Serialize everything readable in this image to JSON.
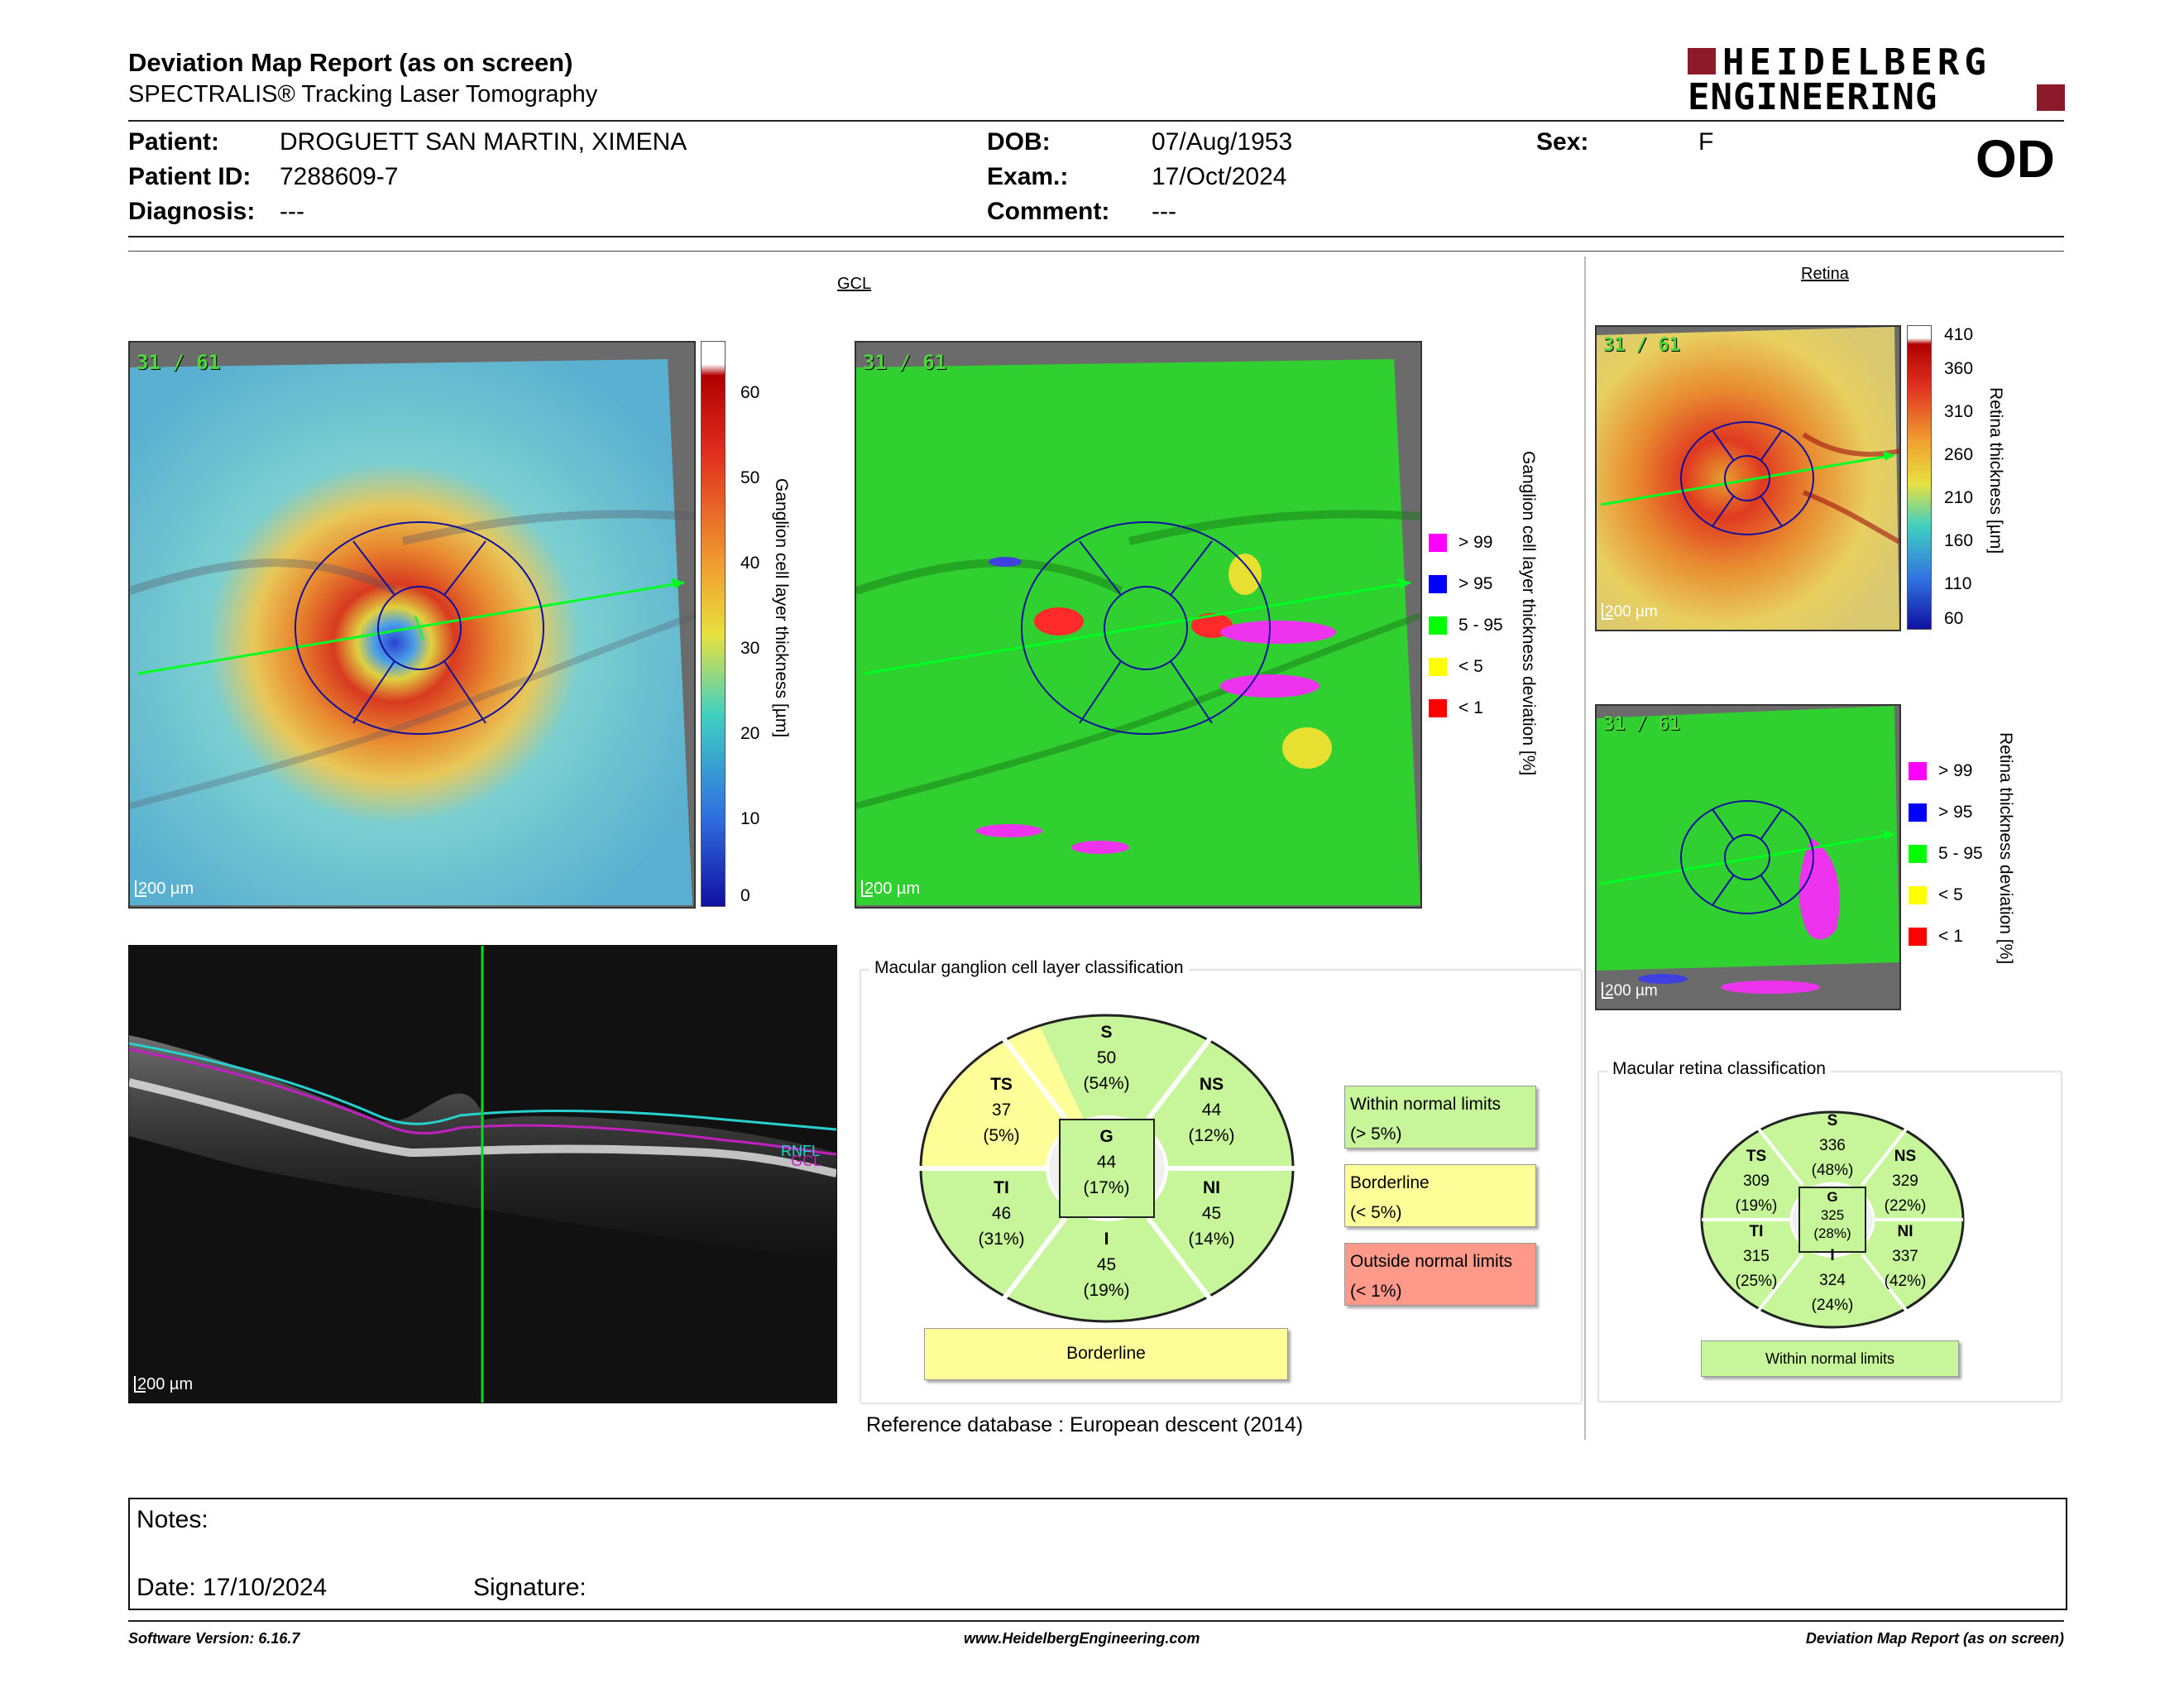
{
  "header": {
    "title": "Deviation Map Report (as on screen)",
    "subtitle": "SPECTRALIS® Tracking Laser Tomography",
    "logo_line1": "HEIDELBERG",
    "logo_line2": "ENGINEERING",
    "logo_color": "#8b1a2b"
  },
  "patient": {
    "patient_label": "Patient:",
    "patient_value": "DROGUETT SAN MARTIN, XIMENA",
    "id_label": "Patient ID:",
    "id_value": "7288609-7",
    "diagnosis_label": "Diagnosis:",
    "diagnosis_value": "---",
    "dob_label": "DOB:",
    "dob_value": "07/Aug/1953",
    "exam_label": "Exam.:",
    "exam_value": "17/Oct/2024",
    "comment_label": "Comment:",
    "comment_value": "---",
    "sex_label": "Sex:",
    "sex_value": "F",
    "eye": "OD"
  },
  "gcl": {
    "section_title": "GCL",
    "scan_index": "31 / 61",
    "scale_label": "200 µm",
    "thickness_ticks": [
      "60",
      "50",
      "40",
      "30",
      "20",
      "10",
      "0"
    ],
    "thickness_axis": "Ganglion cell layer thickness [µm]",
    "deviation_axis": "Ganglion cell layer thickness deviation [%]",
    "legend": [
      {
        "label": "> 99",
        "color": "#ff00ff"
      },
      {
        "label": "> 95",
        "color": "#0000ff"
      },
      {
        "label": "5 - 95",
        "color": "#00ff00"
      },
      {
        "label": "< 5",
        "color": "#ffff00"
      },
      {
        "label": "< 1",
        "color": "#ff0000"
      }
    ]
  },
  "retina": {
    "section_title": "Retina",
    "scan_index": "31 / 61",
    "scale_label": "200 µm",
    "thickness_ticks": [
      "410",
      "360",
      "310",
      "260",
      "210",
      "160",
      "110",
      "60"
    ],
    "thickness_axis": "Retina thickness [µm]",
    "deviation_axis": "Retina thickness deviation [%]",
    "legend": [
      {
        "label": "> 99",
        "color": "#ff00ff"
      },
      {
        "label": "> 95",
        "color": "#0000ff"
      },
      {
        "label": "5 - 95",
        "color": "#00ff00"
      },
      {
        "label": "< 5",
        "color": "#ffff00"
      },
      {
        "label": "< 1",
        "color": "#ff0000"
      }
    ]
  },
  "bscan": {
    "scale_label": "200 µm",
    "layer_label_1": "RNFL",
    "layer_label_2": "GCL"
  },
  "gcl_classification": {
    "title": "Macular ganglion cell layer classification",
    "sectors": {
      "S": {
        "name": "S",
        "value": "50",
        "pct": "(54%)"
      },
      "TS": {
        "name": "TS",
        "value": "37",
        "pct": "(5%)"
      },
      "NS": {
        "name": "NS",
        "value": "44",
        "pct": "(12%)"
      },
      "TI": {
        "name": "TI",
        "value": "46",
        "pct": "(31%)"
      },
      "NI": {
        "name": "NI",
        "value": "45",
        "pct": "(14%)"
      },
      "I": {
        "name": "I",
        "value": "45",
        "pct": "(19%)"
      },
      "G": {
        "name": "G",
        "value": "44",
        "pct": "(17%)"
      }
    },
    "result": "Borderline",
    "legend": [
      {
        "line1": "Within normal limits",
        "line2": "(> 5%)",
        "color": "#c6f59a"
      },
      {
        "line1": "Borderline",
        "line2": "(< 5%)",
        "color": "#ffff99"
      },
      {
        "line1": "Outside normal limits",
        "line2": "(< 1%)",
        "color": "#ff9a8a"
      }
    ],
    "normal_color": "#c6f59a",
    "borderline_color": "#ffff99"
  },
  "retina_classification": {
    "title": "Macular retina classification",
    "sectors": {
      "S": {
        "name": "S",
        "value": "336",
        "pct": "(48%)"
      },
      "TS": {
        "name": "TS",
        "value": "309",
        "pct": "(19%)"
      },
      "NS": {
        "name": "NS",
        "value": "329",
        "pct": "(22%)"
      },
      "TI": {
        "name": "TI",
        "value": "315",
        "pct": "(25%)"
      },
      "NI": {
        "name": "NI",
        "value": "337",
        "pct": "(42%)"
      },
      "I": {
        "name": "I",
        "value": "324",
        "pct": "(24%)"
      },
      "G": {
        "name": "G",
        "value": "325",
        "pct": "(28%)"
      }
    },
    "result": "Within normal limits"
  },
  "reference_db": "Reference database : European descent (2014)",
  "notes": {
    "notes_label": "Notes:",
    "date_label": "Date: 17/10/2024",
    "signature_label": "Signature:"
  },
  "footer": {
    "software": "Software Version: 6.16.7",
    "website": "www.HeidelbergEngineering.com",
    "report": "Deviation Map Report (as on screen)"
  }
}
